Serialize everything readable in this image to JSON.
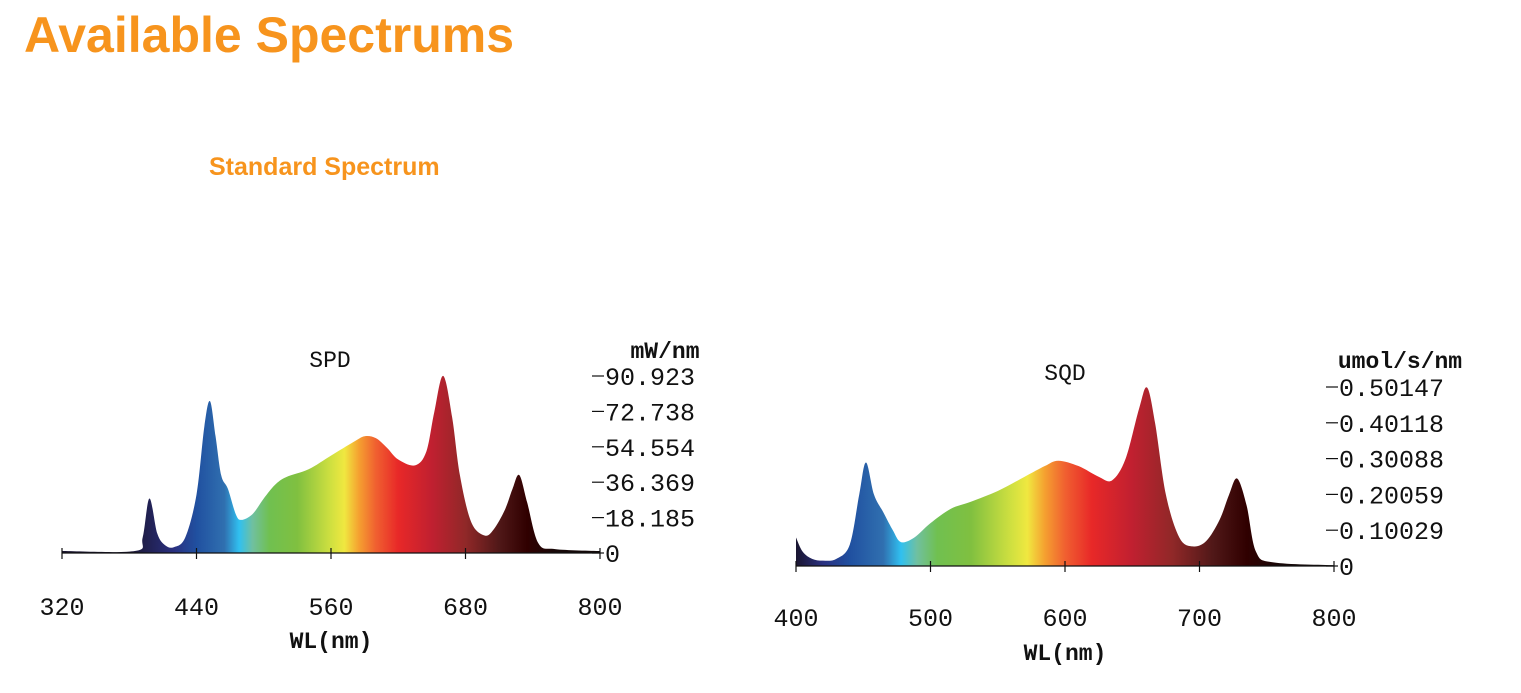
{
  "header": {
    "title": "Available Spectrums",
    "subtitle": "Standard Spectrum"
  },
  "colors": {
    "accent": "#f7941d"
  },
  "chart_data": [
    {
      "type": "area",
      "title": "SPD",
      "xlabel": "WL(nm)",
      "ylabel": "mW/nm",
      "xlim": [
        320,
        800
      ],
      "ylim": [
        0,
        90.923
      ],
      "xticks": [
        "320",
        "440",
        "560",
        "680",
        "800"
      ],
      "yticks": [
        "0",
        "18.185",
        "36.369",
        "54.554",
        "72.738",
        "90.923"
      ],
      "x": [
        320,
        385,
        392,
        398,
        405,
        412,
        420,
        430,
        440,
        447,
        452,
        457,
        462,
        468,
        475,
        480,
        490,
        500,
        510,
        520,
        540,
        560,
        580,
        590,
        600,
        610,
        620,
        635,
        645,
        652,
        660,
        668,
        675,
        685,
        697,
        705,
        715,
        722,
        728,
        735,
        745,
        760,
        800
      ],
      "y": [
        1,
        1,
        8,
        28,
        10,
        4,
        3,
        8,
        30,
        65,
        78,
        60,
        40,
        33,
        20,
        17,
        20,
        28,
        35,
        39,
        43,
        50,
        57,
        60,
        59,
        54,
        48,
        45,
        52,
        72,
        91,
        70,
        40,
        16,
        9,
        12,
        22,
        33,
        40,
        26,
        5,
        2,
        1
      ]
    },
    {
      "type": "area",
      "title": "SQD",
      "xlabel": "WL(nm)",
      "ylabel": "umol/s/nm",
      "xlim": [
        400,
        800
      ],
      "ylim": [
        0,
        0.50147
      ],
      "xticks": [
        "400",
        "500",
        "600",
        "700",
        "800"
      ],
      "yticks": [
        "0",
        "0.10029",
        "0.20059",
        "0.30088",
        "0.40118",
        "0.50147"
      ],
      "x": [
        400,
        405,
        412,
        420,
        430,
        440,
        447,
        452,
        458,
        465,
        472,
        478,
        488,
        500,
        515,
        530,
        550,
        570,
        585,
        595,
        610,
        625,
        635,
        645,
        655,
        661,
        667,
        675,
        685,
        695,
        705,
        715,
        722,
        728,
        735,
        742,
        755,
        800
      ],
      "y": [
        0.08,
        0.04,
        0.02,
        0.015,
        0.02,
        0.06,
        0.2,
        0.29,
        0.2,
        0.15,
        0.1,
        0.067,
        0.08,
        0.12,
        0.16,
        0.18,
        0.21,
        0.25,
        0.28,
        0.295,
        0.28,
        0.25,
        0.24,
        0.3,
        0.44,
        0.5,
        0.4,
        0.2,
        0.08,
        0.055,
        0.07,
        0.13,
        0.2,
        0.245,
        0.17,
        0.04,
        0.01,
        0.002
      ]
    }
  ]
}
